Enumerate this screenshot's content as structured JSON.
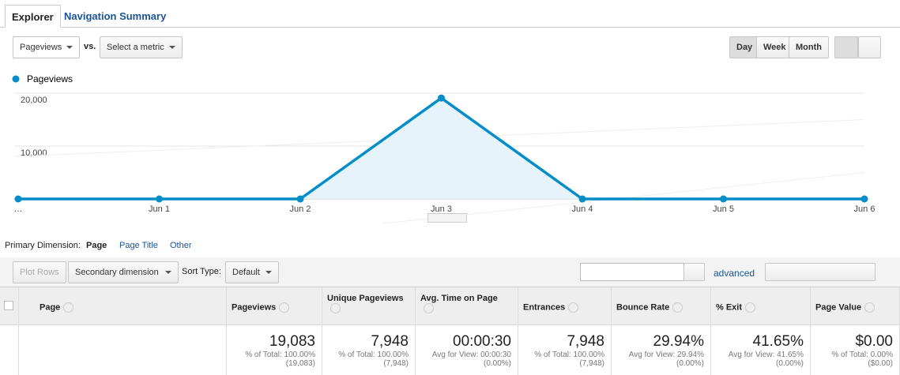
{
  "tabs": [
    "Explorer",
    "Navigation Summary"
  ],
  "controls": {
    "metric": "Pageviews",
    "vs": "vs.",
    "compare": "Select a metric",
    "periods": [
      "Day",
      "Week",
      "Month"
    ]
  },
  "chart_data": {
    "type": "line",
    "x": [
      "…",
      "Jun 1",
      "Jun 2",
      "Jun 3",
      "Jun 4",
      "Jun 5",
      "Jun 6"
    ],
    "series": [
      {
        "name": "Pageviews",
        "color": "#058dc7",
        "values": [
          0,
          0,
          0,
          19083,
          0,
          0,
          0
        ]
      }
    ],
    "ylim": [
      0,
      20000
    ],
    "yticks": [
      {
        "value": 10000,
        "label": "10,000"
      },
      {
        "value": 20000,
        "label": "20,000"
      }
    ],
    "grid": true
  },
  "dimension": {
    "label": "Primary Dimension:",
    "options": [
      "Page",
      "Page Title",
      "Other"
    ]
  },
  "toolbar": {
    "plot_rows": "Plot Rows",
    "secondary": "Secondary dimension",
    "sort_label": "Sort Type:",
    "sort": "Default",
    "advanced": "advanced"
  },
  "table": {
    "columns": [
      "Page",
      "Pageviews",
      "Unique Pageviews",
      "Avg. Time on Page",
      "Entrances",
      "Bounce Rate",
      "% Exit",
      "Page Value"
    ],
    "totals": [
      {
        "value": "19,083",
        "share": "% of Total: 100.00%",
        "detail": "(19,083)"
      },
      {
        "value": "7,948",
        "share": "% of Total: 100.00%",
        "detail": "(7,948)"
      },
      {
        "value": "00:00:30",
        "share": "Avg for View: 00:00:30",
        "detail": "(0.00%)"
      },
      {
        "value": "7,948",
        "share": "% of Total: 100.00%",
        "detail": "(7,948)"
      },
      {
        "value": "29.94%",
        "share": "Avg for View: 29.94%",
        "detail": "(0.00%)"
      },
      {
        "value": "41.65%",
        "share": "Avg for View: 41.65%",
        "detail": "(0.00%)"
      },
      {
        "value": "$0.00",
        "share": "% of Total: 0.00%",
        "detail": "($0.00)"
      }
    ]
  }
}
